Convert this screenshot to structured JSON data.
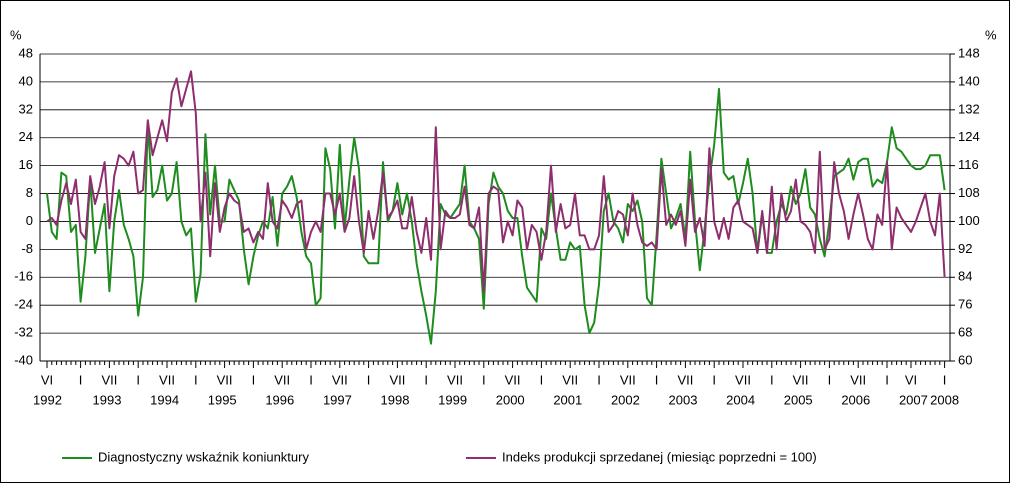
{
  "chart_data": {
    "type": "line",
    "y_label": "%",
    "y2_label": "%",
    "categories": [
      "VI",
      null,
      null,
      null,
      null,
      null,
      null,
      "I",
      null,
      null,
      null,
      null,
      null,
      "VII",
      null,
      null,
      null,
      null,
      null,
      "I",
      null,
      null,
      null,
      null,
      null,
      "VII",
      null,
      null,
      null,
      null,
      null,
      "I",
      null,
      null,
      null,
      null,
      null,
      "VII",
      null,
      null,
      null,
      null,
      null,
      "I",
      null,
      null,
      null,
      null,
      null,
      "VII",
      null,
      null,
      null,
      null,
      null,
      "I",
      null,
      null,
      null,
      null,
      null,
      "VII",
      null,
      null,
      null,
      null,
      null,
      "I",
      null,
      null,
      null,
      null,
      null,
      "VII",
      null,
      null,
      null,
      null,
      null,
      "I",
      null,
      null,
      null,
      null,
      null,
      "VII",
      null,
      null,
      null,
      null,
      null,
      "I",
      null,
      null,
      null,
      null,
      null,
      "VII",
      null,
      null,
      null,
      null,
      null,
      "I",
      null,
      null,
      null,
      null,
      null,
      "VII",
      null,
      null,
      null,
      null,
      null,
      "I",
      null,
      null,
      null,
      null,
      null,
      "VII",
      null,
      null,
      null,
      null,
      null,
      "I",
      null,
      null,
      null,
      null,
      null,
      "VII",
      null,
      null,
      null,
      null,
      null,
      "I",
      null,
      null,
      null,
      null,
      null,
      "VII",
      null,
      null,
      null,
      null,
      null,
      "I",
      null,
      null,
      null,
      null,
      null,
      "VII",
      null,
      null,
      null,
      null,
      null,
      "I",
      null,
      null,
      null,
      null,
      null,
      "VII",
      null,
      null,
      null,
      null,
      null,
      "I",
      null,
      null,
      null,
      null,
      "VI",
      null,
      null,
      null,
      null,
      null,
      null,
      "I"
    ],
    "years": [
      "1992",
      "1993",
      "1994",
      "1995",
      "1996",
      "1997",
      "1998",
      "1999",
      "2000",
      "2001",
      "2002",
      "2003",
      "2004",
      "2005",
      "2006",
      "2007",
      "2008"
    ],
    "ylim": [
      -40,
      48
    ],
    "yticks": [
      -40,
      -32,
      -24,
      -16,
      -8,
      0,
      8,
      16,
      24,
      32,
      40,
      48
    ],
    "y2lim": [
      60,
      148
    ],
    "y2ticks": [
      60,
      68,
      76,
      84,
      92,
      100,
      108,
      116,
      124,
      132,
      140,
      148
    ],
    "grid": true,
    "series": [
      {
        "name": "Diagnostyczny wskaźnik koniunktury",
        "color": "#1e8c1e",
        "values": [
          8,
          -3,
          -5,
          14,
          13,
          -3,
          -1,
          -23,
          -10,
          12,
          -9,
          -2,
          5,
          -20,
          0,
          9,
          -1,
          -5,
          -10,
          -27,
          -16,
          28,
          7,
          9,
          16,
          6,
          8,
          17,
          0,
          -4,
          -2,
          -23,
          -15,
          25,
          2,
          16,
          0,
          0,
          12,
          9,
          6,
          -8,
          -18,
          -10,
          -4,
          0,
          -2,
          7,
          -7,
          8,
          10,
          13,
          7,
          -3,
          -10,
          -12,
          -24,
          -22,
          21,
          15,
          -2,
          22,
          -2,
          12,
          24,
          15,
          -10,
          -12,
          -12,
          -12,
          17,
          0,
          3,
          11,
          2,
          8,
          0,
          -12,
          -20,
          -27,
          -35,
          -20,
          5,
          2,
          1,
          3,
          5,
          16,
          0,
          -2,
          -5,
          -25,
          5,
          14,
          10,
          8,
          3,
          1,
          1,
          -10,
          -19,
          -21,
          -23,
          -2,
          -5,
          8,
          -2,
          -11,
          -11,
          -6,
          -8,
          -7,
          -24,
          -32,
          -29,
          -18,
          3,
          8,
          0,
          -2,
          -6,
          5,
          3,
          6,
          0,
          -22,
          -24,
          -4,
          18,
          8,
          -2,
          1,
          5,
          -5,
          20,
          0,
          -14,
          -2,
          12,
          22,
          38,
          14,
          12,
          13,
          5,
          11,
          18,
          8,
          -9,
          2,
          -9,
          -9,
          0,
          5,
          2,
          10,
          5,
          8,
          15,
          4,
          2,
          -5,
          -10,
          0,
          13,
          14,
          15,
          18,
          12,
          17,
          18,
          18,
          10,
          12,
          11,
          17,
          27,
          21,
          20,
          18,
          16,
          15,
          15,
          16,
          19,
          19,
          19,
          9
        ]
      },
      {
        "name": "Indeks produkcji sprzedanej (miesiąc poprzedni = 100)",
        "color": "#8e2e6e",
        "axis": "y2",
        "values": [
          100,
          101,
          99,
          106,
          111,
          105,
          112,
          97,
          95,
          113,
          105,
          110,
          117,
          98,
          113,
          119,
          118,
          116,
          120,
          108,
          109,
          129,
          119,
          124,
          129,
          123,
          137,
          141,
          133,
          138,
          143,
          131,
          100,
          114,
          90,
          111,
          97,
          104,
          108,
          106,
          105,
          97,
          98,
          94,
          97,
          95,
          111,
          100,
          98,
          106,
          104,
          101,
          105,
          106,
          92,
          97,
          100,
          97,
          108,
          108,
          102,
          108,
          97,
          101,
          113,
          100,
          91,
          103,
          95,
          103,
          114,
          101,
          103,
          106,
          98,
          98,
          107,
          97,
          91,
          101,
          89,
          127,
          92,
          103,
          101,
          101,
          102,
          110,
          99,
          98,
          104,
          80,
          108,
          110,
          109,
          94,
          100,
          96,
          106,
          104,
          92,
          99,
          97,
          89,
          97,
          116,
          97,
          105,
          98,
          99,
          108,
          96,
          96,
          92,
          92,
          96,
          113,
          97,
          99,
          103,
          102,
          96,
          108,
          99,
          94,
          93,
          94,
          92,
          115,
          99,
          102,
          99,
          103,
          93,
          112,
          97,
          101,
          93,
          121,
          100,
          95,
          101,
          95,
          104,
          106,
          100,
          99,
          98,
          91,
          103,
          91,
          110,
          92,
          108,
          100,
          103,
          112,
          100,
          99,
          97,
          91,
          120,
          92,
          95,
          117,
          108,
          103,
          95,
          102,
          108,
          102,
          95,
          92,
          102,
          99,
          117,
          92,
          104,
          101,
          99,
          97,
          100,
          104,
          108,
          100,
          96,
          108,
          84
        ]
      }
    ]
  }
}
